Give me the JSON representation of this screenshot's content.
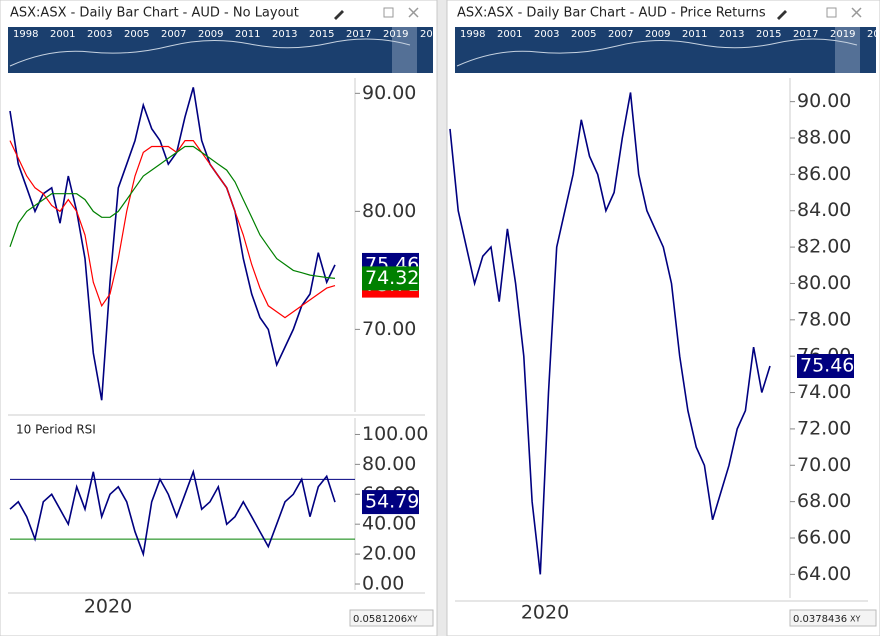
{
  "windows": [
    {
      "title": "ASX:ASX - Daily Bar Chart - AUD - No Layout",
      "navigator_years": [
        "1998",
        "2001",
        "2003",
        "2005",
        "2007",
        "2009",
        "2011",
        "2013",
        "2015",
        "2017",
        "2019",
        "20"
      ],
      "charts": [
        {
          "type": "line",
          "ylim": [
            63,
            91.3
          ],
          "yticks": [
            {
              "value": 70,
              "label": "70.00"
            },
            {
              "value": 80,
              "label": "80.00"
            },
            {
              "value": 90,
              "label": "90.00"
            }
          ],
          "series": [
            {
              "color": "#000080",
              "values": [
                88.5,
                84,
                82,
                80,
                81.5,
                82,
                79,
                83,
                80,
                76,
                68,
                64,
                74,
                82,
                84,
                86,
                89,
                87,
                86,
                84,
                85,
                88,
                90.5,
                86,
                84,
                83,
                82,
                80,
                76,
                73,
                71,
                70,
                67,
                68.5,
                70,
                72,
                73,
                76.5,
                74,
                75.46
              ]
            },
            {
              "color": "#ff0000",
              "values": [
                86,
                84.5,
                83,
                82,
                81.5,
                80.5,
                80,
                81,
                80,
                78,
                74,
                72,
                73,
                76,
                80,
                83,
                85,
                85.5,
                85.5,
                85.5,
                85,
                86,
                86,
                85,
                84,
                83,
                82,
                80,
                78,
                75.5,
                73.5,
                72,
                71.5,
                71,
                71.5,
                72,
                72.5,
                73,
                73.5,
                73.71
              ]
            },
            {
              "color": "#008000",
              "values": [
                77,
                79,
                80,
                80.5,
                81,
                81.5,
                81.5,
                81.5,
                81.5,
                81,
                80,
                79.5,
                79.5,
                80,
                81,
                82,
                83,
                83.5,
                84,
                84.5,
                85,
                85.5,
                85.5,
                85,
                84.5,
                84,
                83.5,
                82.5,
                81,
                79.5,
                78,
                77,
                76,
                75.5,
                75,
                74.8,
                74.6,
                74.5,
                74.4,
                74.32
              ]
            }
          ]
        },
        {
          "type": "line",
          "title": "10 Period RSI",
          "ylim": [
            -4,
            111
          ],
          "yticks": [
            {
              "value": 0,
              "label": "0.00"
            },
            {
              "value": 20,
              "label": "20.00"
            },
            {
              "value": 40,
              "label": "40.00"
            },
            {
              "value": 60,
              "label": "60.00"
            },
            {
              "value": 80,
              "label": "80.00"
            },
            {
              "value": 100,
              "label": "100.00"
            }
          ],
          "levels": [
            {
              "value": 70,
              "color": "#000080"
            },
            {
              "value": 30,
              "color": "#008000"
            }
          ],
          "series": [
            {
              "color": "#000080",
              "values": [
                50,
                55,
                45,
                30,
                55,
                60,
                50,
                40,
                65,
                50,
                75,
                45,
                60,
                65,
                55,
                35,
                20,
                55,
                70,
                60,
                45,
                60,
                75,
                50,
                55,
                65,
                40,
                45,
                55,
                45,
                35,
                25,
                40,
                55,
                60,
                70,
                45,
                65,
                72,
                54.79
              ]
            }
          ]
        }
      ],
      "x_label": "2020",
      "footer_value": "0.0581206",
      "footer_mode": "XY"
    },
    {
      "title": "ASX:ASX - Daily Bar Chart - AUD - Price Returns",
      "navigator_years": [
        "1998",
        "2001",
        "2003",
        "2005",
        "2007",
        "2009",
        "2011",
        "2013",
        "2015",
        "2017",
        "2019",
        "20"
      ],
      "charts": [
        {
          "type": "line",
          "ylim": [
            62.7,
            91.3
          ],
          "yticks": [
            {
              "value": 64,
              "label": "64.00"
            },
            {
              "value": 66,
              "label": "66.00"
            },
            {
              "value": 68,
              "label": "68.00"
            },
            {
              "value": 70,
              "label": "70.00"
            },
            {
              "value": 72,
              "label": "72.00"
            },
            {
              "value": 74,
              "label": "74.00"
            },
            {
              "value": 76,
              "label": "76.00"
            },
            {
              "value": 78,
              "label": "78.00"
            },
            {
              "value": 80,
              "label": "80.00"
            },
            {
              "value": 82,
              "label": "82.00"
            },
            {
              "value": 84,
              "label": "84.00"
            },
            {
              "value": 86,
              "label": "86.00"
            },
            {
              "value": 88,
              "label": "88.00"
            },
            {
              "value": 90,
              "label": "90.00"
            }
          ],
          "series": [
            {
              "color": "#000080",
              "values": [
                88.5,
                84,
                82,
                80,
                81.5,
                82,
                79,
                83,
                80,
                76,
                68,
                64,
                74,
                82,
                84,
                86,
                89,
                87,
                86,
                84,
                85,
                88,
                90.5,
                86,
                84,
                83,
                82,
                80,
                76,
                73,
                71,
                70,
                67,
                68.5,
                70,
                72,
                73,
                76.5,
                74,
                75.46
              ]
            }
          ]
        }
      ],
      "x_label": "2020",
      "footer_value": "0.0378436",
      "footer_mode": "XY"
    }
  ]
}
